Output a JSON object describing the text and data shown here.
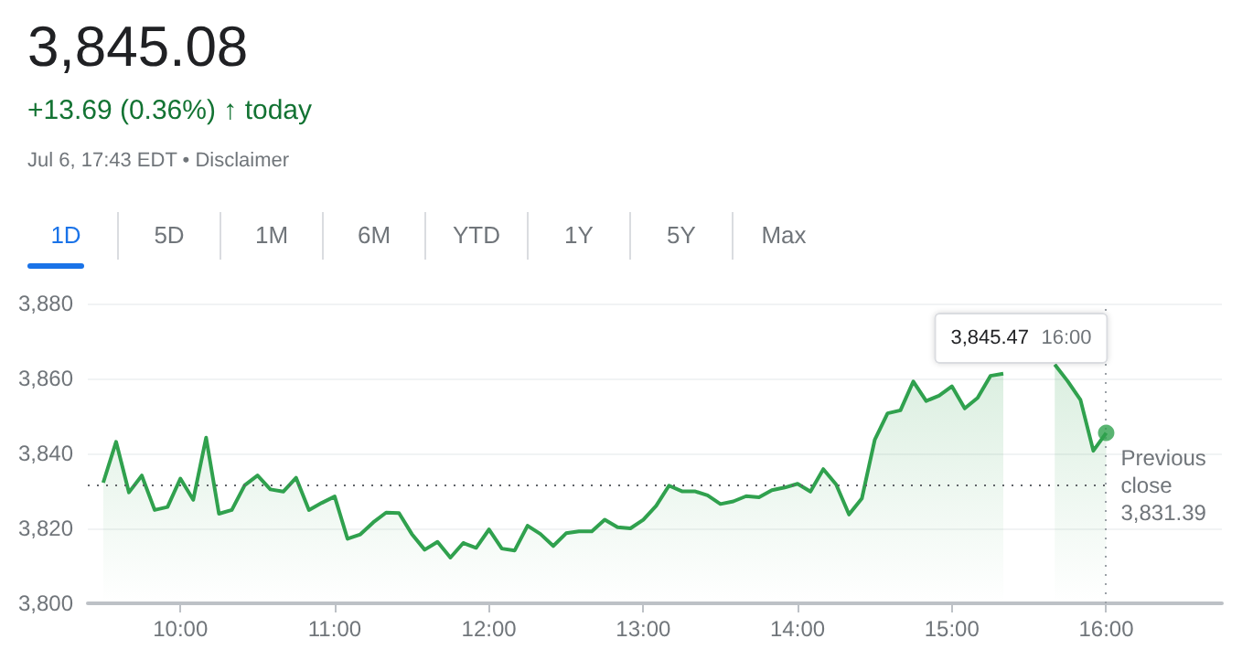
{
  "chart_data": {
    "type": "area",
    "title": "3,845.08",
    "subtitle": "+13.69 (0.36%) ↑ today",
    "annotations": [
      "Jul 6, 17:43 EDT • Disclaimer",
      "1D",
      "5D",
      "1M",
      "6M",
      "YTD",
      "1Y",
      "5Y",
      "Max",
      "3,845.47",
      "16:00"
    ],
    "x": [
      9.5,
      9.5833,
      9.6667,
      9.75,
      9.8333,
      9.9167,
      10,
      10.0833,
      10.1667,
      10.25,
      10.3333,
      10.4167,
      10.5,
      10.5833,
      10.6667,
      10.75,
      10.8333,
      10.9167,
      11,
      11.0833,
      11.1667,
      11.25,
      11.3333,
      11.4167,
      11.5,
      11.5833,
      11.6667,
      11.75,
      11.8333,
      11.9167,
      12,
      12.0833,
      12.1667,
      12.25,
      12.3333,
      12.4167,
      12.5,
      12.5833,
      12.6667,
      12.75,
      12.8333,
      12.9167,
      13,
      13.0833,
      13.1667,
      13.25,
      13.3333,
      13.4167,
      13.5,
      13.5833,
      13.6667,
      13.75,
      13.8333,
      13.9167,
      14,
      14.0833,
      14.1667,
      14.25,
      14.3333,
      14.4167,
      14.5,
      14.5833,
      14.6667,
      14.75,
      14.8333,
      14.9167,
      15,
      15.0833,
      15.1667,
      15.25,
      15.3333,
      15.4167,
      15.5,
      15.5833,
      15.6667,
      15.75,
      15.8333,
      15.9167,
      16
    ],
    "series": [
      {
        "color": "#30a14e",
        "values": [
          3832.2,
          3843.1,
          3829.6,
          3834.1,
          3824.9,
          3825.7,
          3833.3,
          3827.6,
          3844.2,
          3823.9,
          3824.9,
          3831.5,
          3834.1,
          3830.4,
          3829.8,
          3833.5,
          3824.9,
          3826.8,
          3828.5,
          3817.2,
          3818.4,
          3821.6,
          3824.2,
          3824.1,
          3818.5,
          3814.3,
          3816.4,
          3812.2,
          3816.1,
          3814.8,
          3819.7,
          3814.6,
          3814.1,
          3820.7,
          3818.5,
          3815.3,
          3818.7,
          3819.2,
          3819.2,
          3822.3,
          3820.3,
          3820.0,
          3822.3,
          3826.0,
          3831.4,
          3829.9,
          3829.9,
          3828.8,
          3826.5,
          3827.2,
          3828.6,
          3828.3,
          3830.2,
          3830.9,
          3831.9,
          3829.8,
          3835.8,
          3831.7,
          3823.7,
          3828.0,
          3843.6,
          3850.7,
          3851.5,
          3859.2,
          3854.0,
          3855.4,
          3857.9,
          3852.0,
          3854.8,
          3860.7,
          3861.3,
          null,
          null,
          null,
          3863.7,
          3859.3,
          3854.3,
          3840.7,
          3845.47
        ]
      },
      {
        "type": "scatter",
        "color": "#30a14e",
        "x": [
          16
        ],
        "values": [
          3845.47
        ]
      }
    ],
    "xlim": [
      9.4,
      16.75
    ],
    "xticks": [
      {
        "value": 10,
        "label": "10:00"
      },
      {
        "value": 11,
        "label": "11:00"
      },
      {
        "value": 12,
        "label": "12:00"
      },
      {
        "value": 13,
        "label": "13:00"
      },
      {
        "value": 14,
        "label": "14:00"
      },
      {
        "value": 15,
        "label": "15:00"
      },
      {
        "value": 16,
        "label": "16:00"
      }
    ],
    "ylim": [
      3800,
      3880
    ],
    "yticks": [
      {
        "value": 3800,
        "label": "3,800"
      },
      {
        "value": 3820,
        "label": "3,820"
      },
      {
        "value": 3840,
        "label": "3,840"
      },
      {
        "value": 3860,
        "label": "3,860"
      },
      {
        "value": 3880,
        "label": "3,880"
      }
    ],
    "ref_lines": [
      {
        "axis": "y",
        "value": 3831.39,
        "label": "Previous close 3,831.39",
        "line_style": "dotted",
        "color": "#5f6368"
      },
      {
        "axis": "x",
        "value": 16,
        "line_style": "dotted",
        "color": "#9aa0a6"
      }
    ],
    "grid": "y"
  }
}
